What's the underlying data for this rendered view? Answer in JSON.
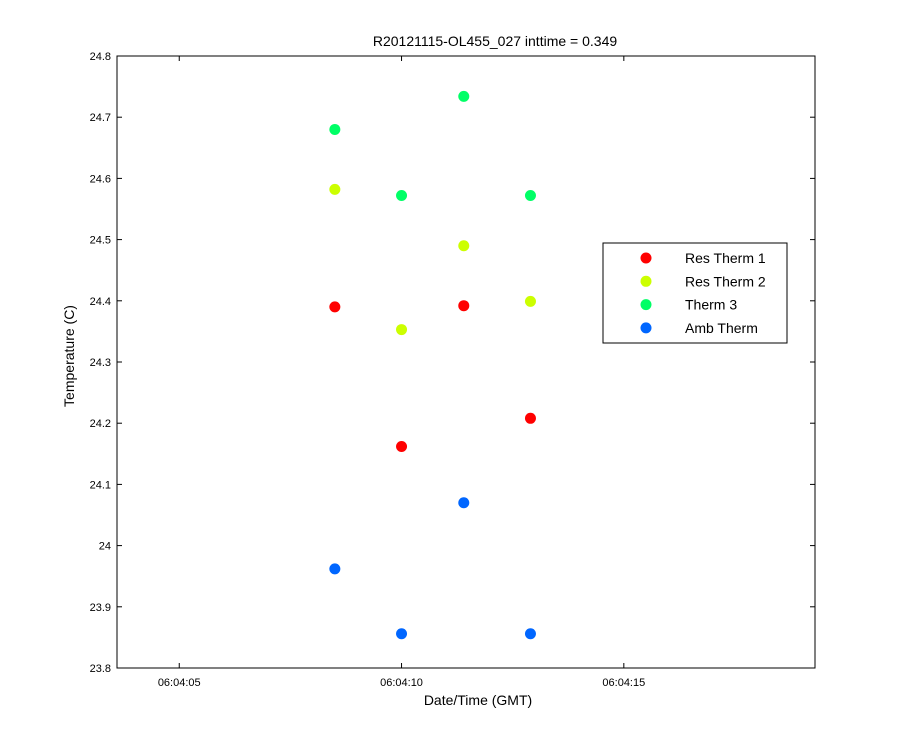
{
  "chart_data": {
    "type": "scatter",
    "title": "R20121115-OL455_027 inttime = 0.349",
    "xlabel": "Date/Time (GMT)",
    "ylabel": "Temperature (C)",
    "xlim": [
      "06:04:03.6",
      "06:04:19.3"
    ],
    "ylim": [
      23.8,
      24.8
    ],
    "xticks": [
      "06:04:05",
      "06:04:10",
      "06:04:15"
    ],
    "yticks": [
      "23.8",
      "23.9",
      "24",
      "24.1",
      "24.2",
      "24.3",
      "24.4",
      "24.5",
      "24.6",
      "24.7",
      "24.8"
    ],
    "x": [
      "06:04:08.5",
      "06:04:10.0",
      "06:04:11.4",
      "06:04:12.9"
    ],
    "series": [
      {
        "name": "Res Therm 1",
        "color": "#ff0000",
        "values": [
          24.39,
          24.162,
          24.392,
          24.208
        ]
      },
      {
        "name": "Res Therm 2",
        "color": "#ccff00",
        "values": [
          24.582,
          24.353,
          24.49,
          24.399
        ]
      },
      {
        "name": "Therm 3",
        "color": "#00ff66",
        "values": [
          24.68,
          24.572,
          24.734,
          24.572
        ]
      },
      {
        "name": "Amb Therm",
        "color": "#0066ff",
        "values": [
          23.962,
          23.856,
          24.07,
          23.856
        ]
      }
    ],
    "grid": false,
    "legend_position": "right"
  }
}
